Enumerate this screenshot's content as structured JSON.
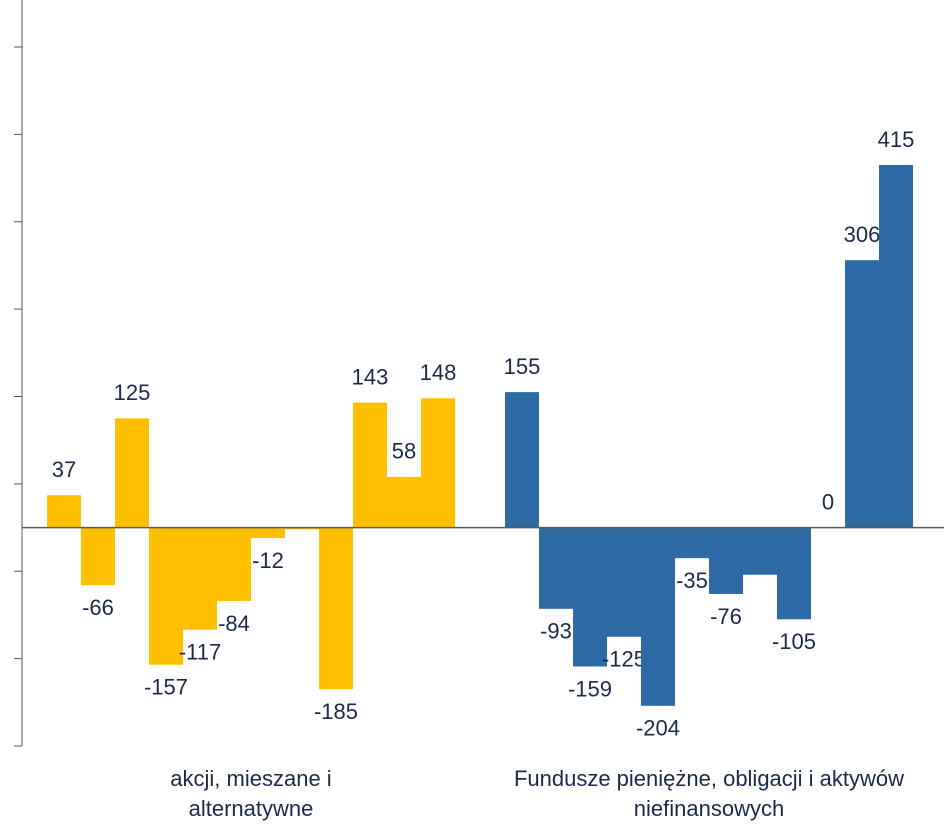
{
  "chart_data": {
    "type": "bar",
    "ylim": [
      -250,
      550
    ],
    "yticks": [
      -250,
      -150,
      -50,
      50,
      150,
      250,
      350,
      450,
      550
    ],
    "series": [
      {
        "name": "akcji, mieszane i alternatywne",
        "color": "#FFC000",
        "values": [
          37,
          -66,
          125,
          -157,
          -117,
          -84,
          -12,
          -2,
          -185,
          143,
          58,
          148
        ],
        "value_labels": [
          "37",
          "-66",
          "125",
          "-157",
          "-117",
          "-84",
          "-12",
          null,
          "-185",
          "143",
          "58",
          "148"
        ]
      },
      {
        "name": "Fundusze pieniężne, obligacji i aktywów niefinansowych",
        "color": "#2E6BA4",
        "values": [
          155,
          -93,
          -159,
          -125,
          -204,
          -35,
          -76,
          -54,
          -105,
          0,
          306,
          415
        ],
        "value_labels": [
          "155",
          "-93",
          "-159",
          "-125",
          "-204",
          "-35",
          "-76",
          null,
          "-105",
          "0",
          "306",
          "415"
        ]
      }
    ]
  }
}
